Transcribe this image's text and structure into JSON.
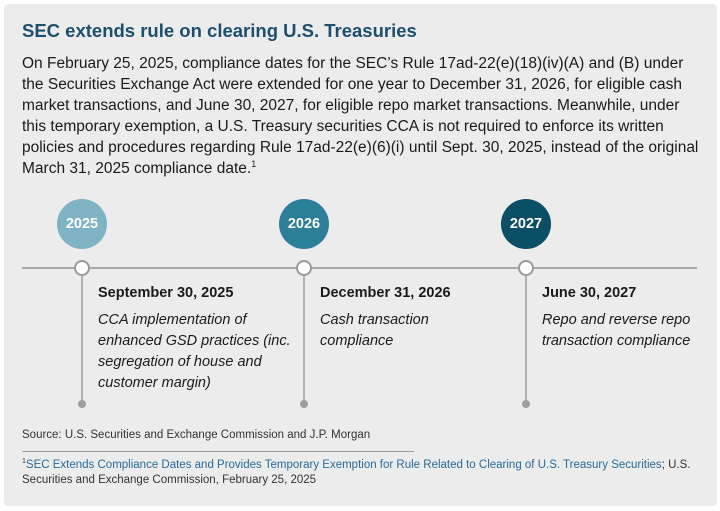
{
  "title": "SEC extends rule on clearing U.S. Treasuries",
  "intro": {
    "text": "On February 25, 2025, compliance dates for the SEC’s Rule 17ad-22(e)(18)(iv)(A) and (B) under the Securities Exchange Act were extended for one year to December 31, 2026, for eligible cash market transactions, and June 30, 2027, for eligible repo market transactions. Meanwhile, under this temporary exemption, a U.S. Treasury securities CCA is not required to enforce its written policies and procedures regarding Rule 17ad-22(e)(6)(i) until Sept. 30, 2025, instead of the original March 31, 2025 compliance date.",
    "footnote_marker": "1"
  },
  "timeline": {
    "years": [
      {
        "label": "2025",
        "color": "#7fb2c4"
      },
      {
        "label": "2026",
        "color": "#2c7f98"
      },
      {
        "label": "2027",
        "color": "#0b4f67"
      }
    ],
    "milestones": [
      {
        "date": "September 30, 2025",
        "description": "CCA implementation of enhanced GSD practices (inc. segregation of house and customer margin)"
      },
      {
        "date": "December 31, 2026",
        "description": "Cash transaction compliance"
      },
      {
        "date": "June 30, 2027",
        "description": "Repo and reverse repo transaction compliance"
      }
    ]
  },
  "source": "Source: U.S. Securities and Exchange Commission and J.P. Morgan",
  "footnote": {
    "marker": "1",
    "link_text": "SEC Extends Compliance Dates and Provides Temporary Exemption for Rule Related to Clearing of U.S. Treasury Securities",
    "rest": "; U.S. Securities and Exchange Commission, February 25, 2025",
    "link_color": "#2a6a9a"
  }
}
